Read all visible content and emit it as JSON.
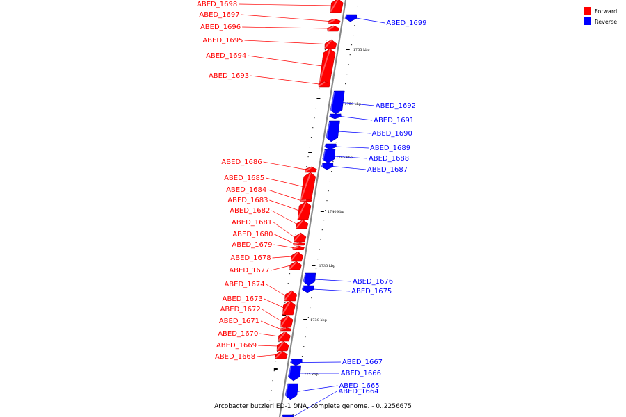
{
  "title": "Arcobacter butzleri ED-1 DNA, complete genome. - 0..2256675",
  "colors": {
    "forward": "#ff0000",
    "reverse": "#0000ff",
    "backbone": "#888888",
    "tick": "#000000"
  },
  "legend": [
    {
      "label": "Forward",
      "strand": "forward"
    },
    {
      "label": "Reverse",
      "strand": "reverse"
    }
  ],
  "ticks": [
    {
      "label": "1755 kbp"
    },
    {
      "label": "1750 kbp"
    },
    {
      "label": "1745 kbp"
    },
    {
      "label": "1740 kbp"
    },
    {
      "label": "1735 kbp"
    },
    {
      "label": "1730 kbp"
    },
    {
      "label": "1725 kbp"
    }
  ],
  "genes": [
    {
      "name": "ABED_1698",
      "strand": "forward"
    },
    {
      "name": "ABED_1697",
      "strand": "forward"
    },
    {
      "name": "ABED_1696",
      "strand": "forward"
    },
    {
      "name": "ABED_1695",
      "strand": "forward"
    },
    {
      "name": "ABED_1694",
      "strand": "forward"
    },
    {
      "name": "ABED_1693",
      "strand": "forward"
    },
    {
      "name": "ABED_1699",
      "strand": "reverse"
    },
    {
      "name": "ABED_1692",
      "strand": "reverse"
    },
    {
      "name": "ABED_1691",
      "strand": "reverse"
    },
    {
      "name": "ABED_1690",
      "strand": "reverse"
    },
    {
      "name": "ABED_1689",
      "strand": "reverse"
    },
    {
      "name": "ABED_1688",
      "strand": "reverse"
    },
    {
      "name": "ABED_1687",
      "strand": "reverse"
    },
    {
      "name": "ABED_1686",
      "strand": "forward"
    },
    {
      "name": "ABED_1685",
      "strand": "forward"
    },
    {
      "name": "ABED_1684",
      "strand": "forward"
    },
    {
      "name": "ABED_1683",
      "strand": "forward"
    },
    {
      "name": "ABED_1682",
      "strand": "forward"
    },
    {
      "name": "ABED_1681",
      "strand": "forward"
    },
    {
      "name": "ABED_1680",
      "strand": "forward"
    },
    {
      "name": "ABED_1679",
      "strand": "forward"
    },
    {
      "name": "ABED_1678",
      "strand": "forward"
    },
    {
      "name": "ABED_1677",
      "strand": "forward"
    },
    {
      "name": "ABED_1676",
      "strand": "reverse"
    },
    {
      "name": "ABED_1675",
      "strand": "reverse"
    },
    {
      "name": "ABED_1674",
      "strand": "forward"
    },
    {
      "name": "ABED_1673",
      "strand": "forward"
    },
    {
      "name": "ABED_1672",
      "strand": "forward"
    },
    {
      "name": "ABED_1671",
      "strand": "forward"
    },
    {
      "name": "ABED_1670",
      "strand": "forward"
    },
    {
      "name": "ABED_1669",
      "strand": "forward"
    },
    {
      "name": "ABED_1668",
      "strand": "forward"
    },
    {
      "name": "ABED_1667",
      "strand": "reverse"
    },
    {
      "name": "ABED_1666",
      "strand": "reverse"
    },
    {
      "name": "ABED_1665",
      "strand": "reverse"
    },
    {
      "name": "ABED_1664",
      "strand": "reverse"
    }
  ]
}
